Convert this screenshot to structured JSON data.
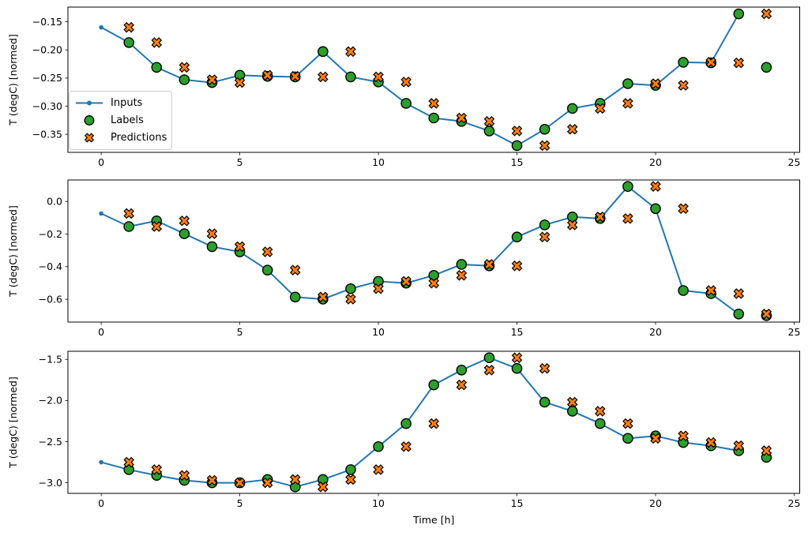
{
  "figure": {
    "xlabel": "Time [h]",
    "background": "#ffffff"
  },
  "colors": {
    "inputs_line": "#1f77b4",
    "labels_marker": "#2ca02c",
    "predictions_marker": "#ff7f0e",
    "marker_edge": "#000000",
    "axis": "#000000",
    "legend_border": "#cccccc"
  },
  "legend": {
    "location": "center-left of first subplot",
    "items": [
      {
        "name": "inputs",
        "label": "Inputs",
        "marker": "line-with-dot"
      },
      {
        "name": "labels",
        "label": "Labels",
        "marker": "filled-circle"
      },
      {
        "name": "predictions",
        "label": "Predictions",
        "marker": "thick-x"
      }
    ]
  },
  "chart_data": [
    {
      "type": "line",
      "ylabel": "T (degC) [normed]",
      "xlim": [
        -1.2,
        25.2
      ],
      "ylim": [
        -0.382,
        -0.124
      ],
      "xticks": [
        0,
        5,
        10,
        15,
        20,
        25
      ],
      "xtick_labels": [
        "0",
        "5",
        "10",
        "15",
        "20",
        "25"
      ],
      "yticks": [
        -0.15,
        -0.2,
        -0.25,
        -0.3,
        -0.35
      ],
      "ytick_labels": [
        "−0.15",
        "−0.20",
        "−0.25",
        "−0.30",
        "−0.35"
      ],
      "grid": false,
      "series": [
        {
          "name": "Inputs",
          "marker": "line-with-dots",
          "color": "#1f77b4",
          "x": [
            0,
            1,
            2,
            3,
            4,
            5,
            6,
            7,
            8,
            9,
            10,
            11,
            12,
            13,
            14,
            15,
            16,
            17,
            18,
            19,
            20,
            21,
            22,
            23
          ],
          "values": [
            -0.16,
            -0.187,
            -0.231,
            -0.253,
            -0.258,
            -0.245,
            -0.247,
            -0.248,
            -0.203,
            -0.248,
            -0.257,
            -0.295,
            -0.321,
            -0.327,
            -0.344,
            -0.37,
            -0.341,
            -0.304,
            -0.295,
            -0.26,
            -0.263,
            -0.222,
            -0.223,
            -0.136
          ]
        },
        {
          "name": "Labels",
          "marker": "filled-circle",
          "color": "#2ca02c",
          "x": [
            1,
            2,
            3,
            4,
            5,
            6,
            7,
            8,
            9,
            10,
            11,
            12,
            13,
            14,
            15,
            16,
            17,
            18,
            19,
            20,
            21,
            22,
            23,
            24
          ],
          "values": [
            -0.187,
            -0.231,
            -0.253,
            -0.258,
            -0.245,
            -0.247,
            -0.248,
            -0.203,
            -0.248,
            -0.257,
            -0.295,
            -0.321,
            -0.327,
            -0.344,
            -0.37,
            -0.341,
            -0.304,
            -0.295,
            -0.26,
            -0.263,
            -0.222,
            -0.223,
            -0.136,
            -0.231
          ]
        },
        {
          "name": "Predictions",
          "marker": "thick-x",
          "color": "#ff7f0e",
          "x": [
            1,
            2,
            3,
            4,
            5,
            6,
            7,
            8,
            9,
            10,
            11,
            12,
            13,
            14,
            15,
            16,
            17,
            18,
            19,
            20,
            21,
            22,
            23,
            24
          ],
          "values": [
            -0.16,
            -0.187,
            -0.231,
            -0.253,
            -0.258,
            -0.245,
            -0.247,
            -0.248,
            -0.203,
            -0.248,
            -0.257,
            -0.295,
            -0.321,
            -0.327,
            -0.344,
            -0.37,
            -0.341,
            -0.304,
            -0.295,
            -0.26,
            -0.263,
            -0.222,
            -0.223,
            -0.136
          ]
        }
      ]
    },
    {
      "type": "line",
      "ylabel": "T (degC) [normed]",
      "xlim": [
        -1.2,
        25.2
      ],
      "ylim": [
        -0.7395,
        0.1315
      ],
      "xticks": [
        0,
        5,
        10,
        15,
        20,
        25
      ],
      "xtick_labels": [
        "0",
        "5",
        "10",
        "15",
        "20",
        "25"
      ],
      "yticks": [
        0.0,
        -0.2,
        -0.4,
        -0.6
      ],
      "ytick_labels": [
        "0.0",
        "−0.2",
        "−0.4",
        "−0.6"
      ],
      "grid": false,
      "series": [
        {
          "name": "Inputs",
          "marker": "line-with-dots",
          "color": "#1f77b4",
          "x": [
            0,
            1,
            2,
            3,
            4,
            5,
            6,
            7,
            8,
            9,
            10,
            11,
            12,
            13,
            14,
            15,
            16,
            17,
            18,
            19,
            20,
            21,
            22,
            23
          ],
          "values": [
            -0.074,
            -0.154,
            -0.119,
            -0.198,
            -0.277,
            -0.309,
            -0.421,
            -0.586,
            -0.599,
            -0.535,
            -0.49,
            -0.501,
            -0.453,
            -0.386,
            -0.395,
            -0.218,
            -0.144,
            -0.095,
            -0.105,
            0.092,
            -0.044,
            -0.546,
            -0.565,
            -0.69
          ]
        },
        {
          "name": "Labels",
          "marker": "filled-circle",
          "color": "#2ca02c",
          "x": [
            1,
            2,
            3,
            4,
            5,
            6,
            7,
            8,
            9,
            10,
            11,
            12,
            13,
            14,
            15,
            16,
            17,
            18,
            19,
            20,
            21,
            22,
            23,
            24
          ],
          "values": [
            -0.154,
            -0.119,
            -0.198,
            -0.277,
            -0.309,
            -0.421,
            -0.586,
            -0.599,
            -0.535,
            -0.49,
            -0.501,
            -0.453,
            -0.386,
            -0.395,
            -0.218,
            -0.144,
            -0.095,
            -0.105,
            0.092,
            -0.044,
            -0.546,
            -0.565,
            -0.69,
            -0.7
          ]
        },
        {
          "name": "Predictions",
          "marker": "thick-x",
          "color": "#ff7f0e",
          "x": [
            1,
            2,
            3,
            4,
            5,
            6,
            7,
            8,
            9,
            10,
            11,
            12,
            13,
            14,
            15,
            16,
            17,
            18,
            19,
            20,
            21,
            22,
            23,
            24
          ],
          "values": [
            -0.074,
            -0.154,
            -0.119,
            -0.198,
            -0.277,
            -0.309,
            -0.421,
            -0.586,
            -0.599,
            -0.535,
            -0.49,
            -0.501,
            -0.453,
            -0.386,
            -0.395,
            -0.218,
            -0.144,
            -0.095,
            -0.105,
            0.092,
            -0.044,
            -0.546,
            -0.565,
            -0.69
          ]
        }
      ]
    },
    {
      "type": "line",
      "ylabel": "T (degC) [normed]",
      "xlabel": "Time [h]",
      "xlim": [
        -1.2,
        25.2
      ],
      "ylim": [
        -3.1285,
        -1.4015
      ],
      "xticks": [
        0,
        5,
        10,
        15,
        20,
        25
      ],
      "xtick_labels": [
        "0",
        "5",
        "10",
        "15",
        "20",
        "25"
      ],
      "yticks": [
        -1.5,
        -2.0,
        -2.5,
        -3.0
      ],
      "ytick_labels": [
        "−1.5",
        "−2.0",
        "−2.5",
        "−3.0"
      ],
      "grid": false,
      "series": [
        {
          "name": "Inputs",
          "marker": "line-with-dots",
          "color": "#1f77b4",
          "x": [
            0,
            1,
            2,
            3,
            4,
            5,
            6,
            7,
            8,
            9,
            10,
            11,
            12,
            13,
            14,
            15,
            16,
            17,
            18,
            19,
            20,
            21,
            22,
            23
          ],
          "values": [
            -2.75,
            -2.84,
            -2.91,
            -2.97,
            -3.0,
            -3.0,
            -2.96,
            -3.05,
            -2.96,
            -2.84,
            -2.56,
            -2.28,
            -1.81,
            -1.63,
            -1.48,
            -1.61,
            -2.02,
            -2.13,
            -2.28,
            -2.46,
            -2.43,
            -2.51,
            -2.55,
            -2.61
          ]
        },
        {
          "name": "Labels",
          "marker": "filled-circle",
          "color": "#2ca02c",
          "x": [
            1,
            2,
            3,
            4,
            5,
            6,
            7,
            8,
            9,
            10,
            11,
            12,
            13,
            14,
            15,
            16,
            17,
            18,
            19,
            20,
            21,
            22,
            23,
            24
          ],
          "values": [
            -2.84,
            -2.91,
            -2.97,
            -3.0,
            -3.0,
            -2.96,
            -3.05,
            -2.96,
            -2.84,
            -2.56,
            -2.28,
            -1.81,
            -1.63,
            -1.48,
            -1.61,
            -2.02,
            -2.13,
            -2.28,
            -2.46,
            -2.43,
            -2.51,
            -2.55,
            -2.61,
            -2.69
          ]
        },
        {
          "name": "Predictions",
          "marker": "thick-x",
          "color": "#ff7f0e",
          "x": [
            1,
            2,
            3,
            4,
            5,
            6,
            7,
            8,
            9,
            10,
            11,
            12,
            13,
            14,
            15,
            16,
            17,
            18,
            19,
            20,
            21,
            22,
            23,
            24
          ],
          "values": [
            -2.75,
            -2.84,
            -2.91,
            -2.97,
            -3.0,
            -3.0,
            -2.96,
            -3.05,
            -2.96,
            -2.84,
            -2.56,
            -2.28,
            -1.81,
            -1.63,
            -1.48,
            -1.61,
            -2.02,
            -2.13,
            -2.28,
            -2.46,
            -2.43,
            -2.51,
            -2.55,
            -2.61
          ]
        }
      ]
    }
  ]
}
